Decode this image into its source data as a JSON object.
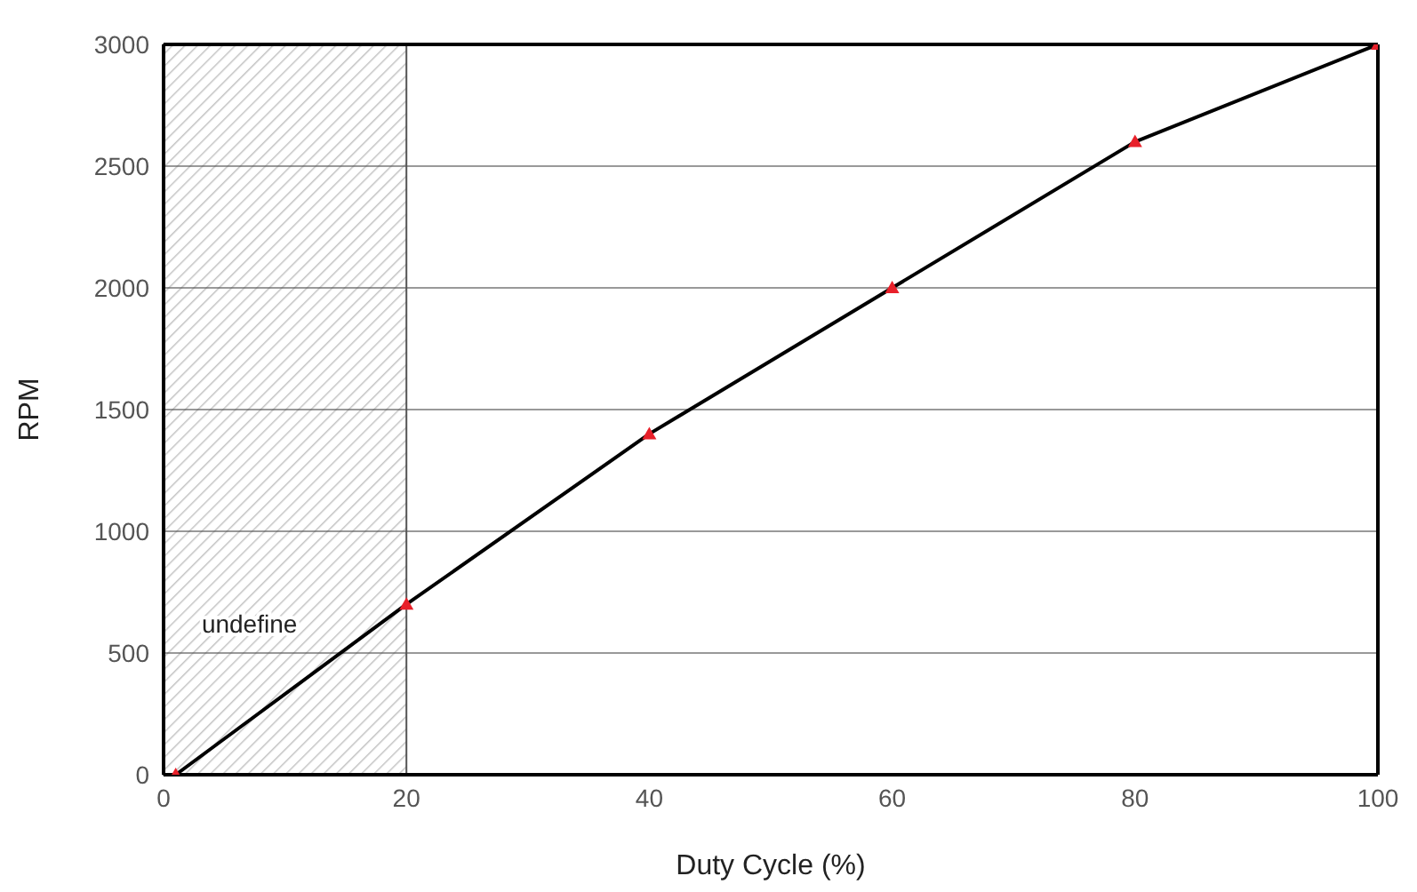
{
  "chart_data": {
    "type": "line",
    "xlabel": "Duty Cycle (%)",
    "ylabel": "RPM",
    "x": [
      1,
      20,
      40,
      60,
      80,
      100
    ],
    "series": [
      {
        "color": "#000000",
        "values": [
          0,
          700,
          1400,
          2000,
          2600,
          3000
        ]
      }
    ],
    "xlim": [
      0,
      100
    ],
    "xticks": [
      0,
      20,
      40,
      60,
      80,
      100
    ],
    "ylim": [
      0,
      3000
    ],
    "yticks": [
      0,
      500,
      1000,
      1500,
      2000,
      2500,
      3000
    ],
    "grid": "y",
    "marker": "triangle",
    "line_style": "solid",
    "legend": false,
    "bands": [
      {
        "axis": "x",
        "from": 0,
        "to": 20,
        "label": "undefine",
        "color": "#555555"
      }
    ]
  }
}
